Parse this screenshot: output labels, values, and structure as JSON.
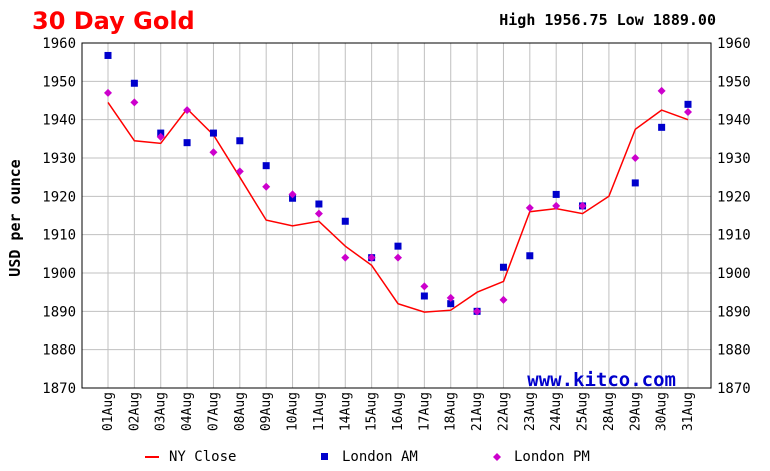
{
  "chart_data": {
    "type": "line",
    "title": "30 Day Gold",
    "hilo": "High 1956.75 Low 1889.00",
    "ylabel": "USD per ounce",
    "watermark": "www.kitco.com",
    "ylim": [
      1870,
      1960
    ],
    "yticks": [
      1870,
      1880,
      1890,
      1900,
      1910,
      1920,
      1930,
      1940,
      1950,
      1960
    ],
    "grid": true,
    "legend_position": "bottom",
    "categories": [
      "01Aug",
      "02Aug",
      "03Aug",
      "04Aug",
      "07Aug",
      "08Aug",
      "09Aug",
      "10Aug",
      "11Aug",
      "14Aug",
      "15Aug",
      "16Aug",
      "17Aug",
      "18Aug",
      "21Aug",
      "22Aug",
      "23Aug",
      "24Aug",
      "25Aug",
      "28Aug",
      "29Aug",
      "30Aug",
      "31Aug"
    ],
    "series": [
      {
        "name": "NY Close",
        "type": "line",
        "color": "#ff0000",
        "values": [
          1944.5,
          1934.5,
          1933.8,
          1942.8,
          1936.0,
          1925.0,
          1913.8,
          1912.3,
          1913.5,
          1907.0,
          1902.0,
          1892.0,
          1889.8,
          1890.3,
          1895.0,
          1897.8,
          1916.0,
          1916.8,
          1915.5,
          1920.0,
          1937.5,
          1942.5,
          1940.0
        ]
      },
      {
        "name": "London AM",
        "type": "square",
        "color": "#0000cc",
        "values": [
          1956.75,
          1949.5,
          1936.5,
          1934.0,
          1936.5,
          1934.5,
          1928.0,
          1919.5,
          1918.0,
          1913.5,
          1904.0,
          1907.0,
          1894.0,
          1892.0,
          1890.0,
          1901.5,
          1904.5,
          1920.5,
          1917.5,
          null,
          1923.5,
          1938.0,
          1944.0
        ]
      },
      {
        "name": "London PM",
        "type": "diamond",
        "color": "#cc00cc",
        "values": [
          1947.0,
          1944.5,
          1935.5,
          1942.5,
          1931.5,
          1926.5,
          1922.5,
          1920.5,
          1915.5,
          1904.0,
          1904.0,
          1904.0,
          1896.5,
          1893.5,
          1890.0,
          1893.0,
          1917.0,
          1917.5,
          1917.5,
          null,
          1930.0,
          1947.5,
          1942.0
        ]
      }
    ]
  },
  "colors": {
    "border": "#000000",
    "grid": "#c0c0c0",
    "title": "#ff0000",
    "watermark": "#0000cc"
  }
}
